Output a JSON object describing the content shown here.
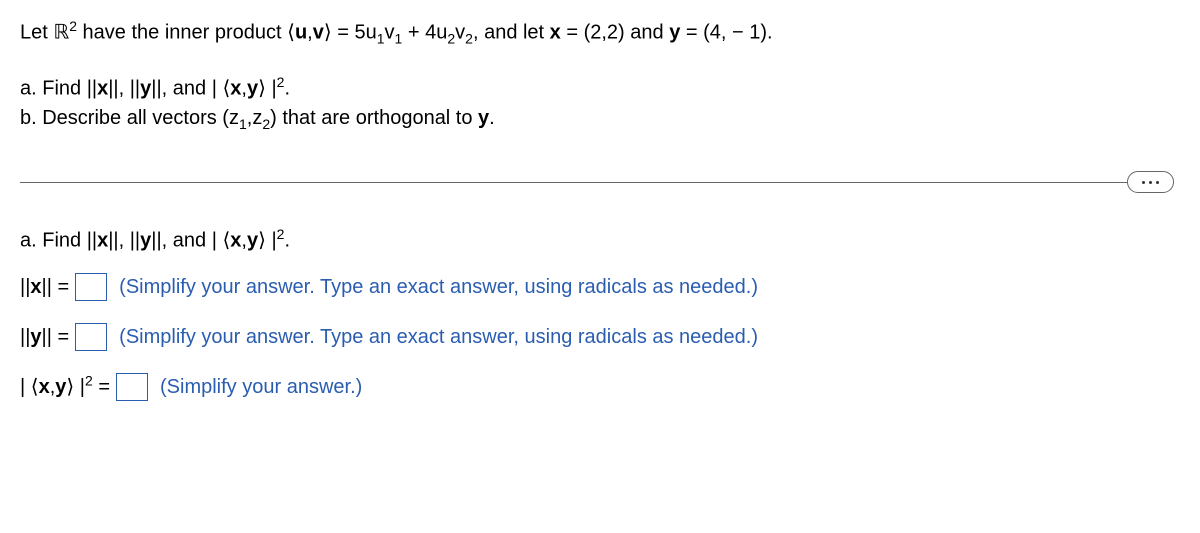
{
  "problem": {
    "prefix": "Let ",
    "space": "ℝ",
    "space_sup": "2",
    "mid1": " have the inner product ",
    "ip_open": "⟨",
    "u": "u",
    "comma": ",",
    "v": "v",
    "ip_close": "⟩",
    "eq": " = 5u",
    "sub1": "1",
    "v1": "v",
    "sub1b": "1",
    "plus": " + 4u",
    "sub2": "2",
    "v2": "v",
    "sub2b": "2",
    "mid2": ", and let ",
    "x": "x",
    "xval": " = (2,2) and ",
    "y": "y",
    "yval": " = (4, − 1)."
  },
  "partA": {
    "label": "a. Find ",
    "norm_x": "x",
    "sep1": ", ",
    "norm_y": "y",
    "sep2": ", and ",
    "abs_open": "| ",
    "ip_open": "⟨",
    "x": "x",
    "comma": ",",
    "y": "y",
    "ip_close": "⟩",
    "abs_close": " |",
    "sup": "2",
    "dot": "."
  },
  "partB": {
    "label": "b. Describe all vectors ",
    "vec_open": "(z",
    "sub1": "1",
    "comma": ",z",
    "sub2": "2",
    "vec_close": ")",
    "mid": " that are orthogonal to ",
    "y": "y",
    "dot": "."
  },
  "answerHeading": {
    "label": "a. Find ",
    "norm_x": "x",
    "sep1": ", ",
    "norm_y": "y",
    "sep2": ", and ",
    "abs_open": "| ",
    "ip_open": "⟨",
    "x": "x",
    "comma": ",",
    "y": "y",
    "ip_close": "⟩",
    "abs_close": " |",
    "sup": "2",
    "dot": "."
  },
  "answers": {
    "x": {
      "bars_l": "||",
      "sym": "x",
      "bars_r": "||",
      "eq": " = ",
      "hint": "(Simplify your answer. Type an exact answer, using radicals as needed.)"
    },
    "y": {
      "bars_l": "||",
      "sym": "y",
      "bars_r": "||",
      "eq": " = ",
      "hint": "(Simplify your answer. Type an exact answer, using radicals as needed.)"
    },
    "ip": {
      "abs_open": "| ",
      "ip_open": "⟨",
      "x": "x",
      "comma": ",",
      "y": "y",
      "ip_close": "⟩",
      "abs_close": " |",
      "sup": "2",
      "eq": " = ",
      "hint": "(Simplify your answer.)"
    }
  },
  "colors": {
    "link": "#2a5db0",
    "text": "#000000",
    "border": "#666666"
  }
}
